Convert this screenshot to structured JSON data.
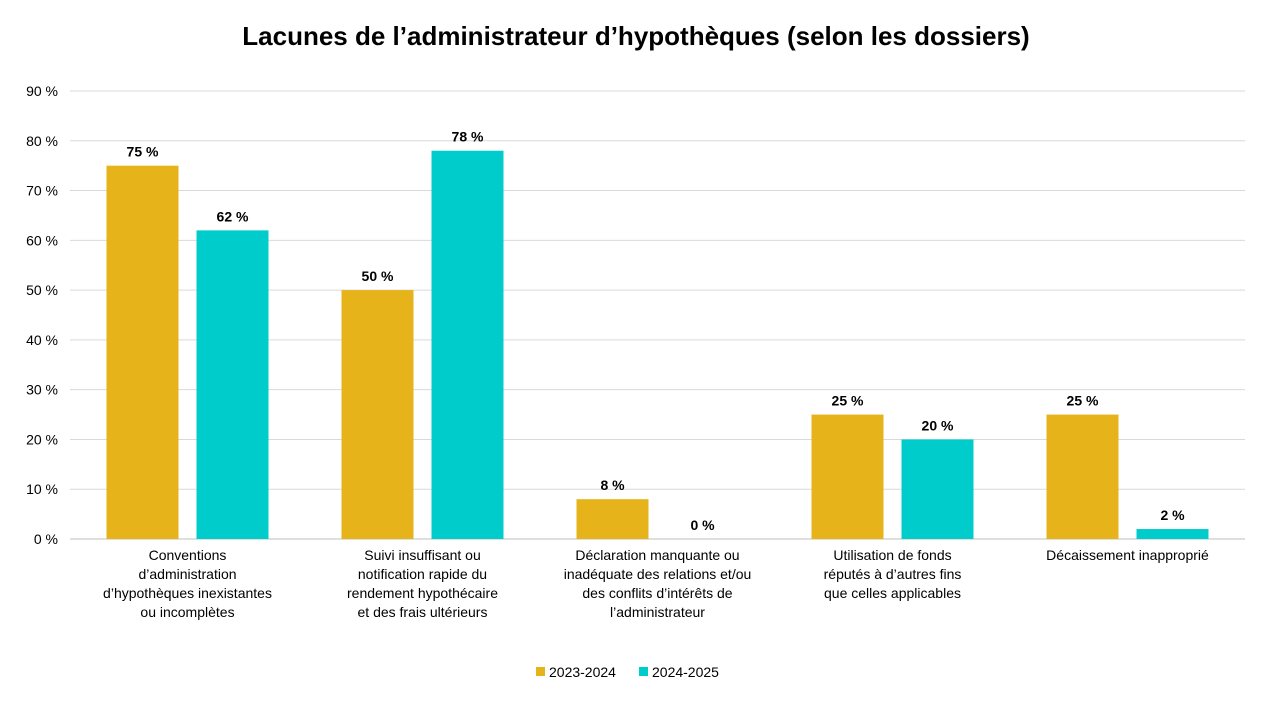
{
  "chart_data": {
    "type": "bar",
    "title": "Lacunes de l’administrateur d’hypothèques (selon les dossiers)",
    "categories": [
      [
        "Conventions",
        "d’administration",
        "d’hypothèques inexistantes",
        "ou incomplètes"
      ],
      [
        "Suivi insuffisant ou",
        "notification rapide du",
        "rendement hypothécaire",
        "et des frais ultérieurs"
      ],
      [
        "Déclaration manquante ou",
        "inadéquate des relations et/ou",
        "des conflits d’intérêts de",
        "l’administrateur"
      ],
      [
        "Utilisation de fonds",
        "réputés à d’autres fins",
        "que celles applicables"
      ],
      [
        "Décaissement inapproprié"
      ]
    ],
    "series": [
      {
        "name": "2023-2024",
        "color": "#E6B31A",
        "values": [
          75,
          50,
          8,
          25,
          25
        ],
        "labels": [
          "75 %",
          "50 %",
          "8 %",
          "25 %",
          "25 %"
        ]
      },
      {
        "name": "2024-2025",
        "color": "#00CCCC",
        "values": [
          62,
          78,
          0,
          20,
          2
        ],
        "labels": [
          "62 %",
          "78 %",
          "0 %",
          "20 %",
          "2 %"
        ]
      }
    ],
    "ylim": [
      0,
      90
    ],
    "yticks": [
      0,
      10,
      20,
      30,
      40,
      50,
      60,
      70,
      80,
      90
    ],
    "ytick_labels": [
      "0 %",
      "10 %",
      "20 %",
      "30 %",
      "40 %",
      "50 %",
      "60 %",
      "70 %",
      "80 %",
      "90 %"
    ],
    "xlabel": "",
    "ylabel": "",
    "grid": true,
    "legend": "bottom"
  }
}
